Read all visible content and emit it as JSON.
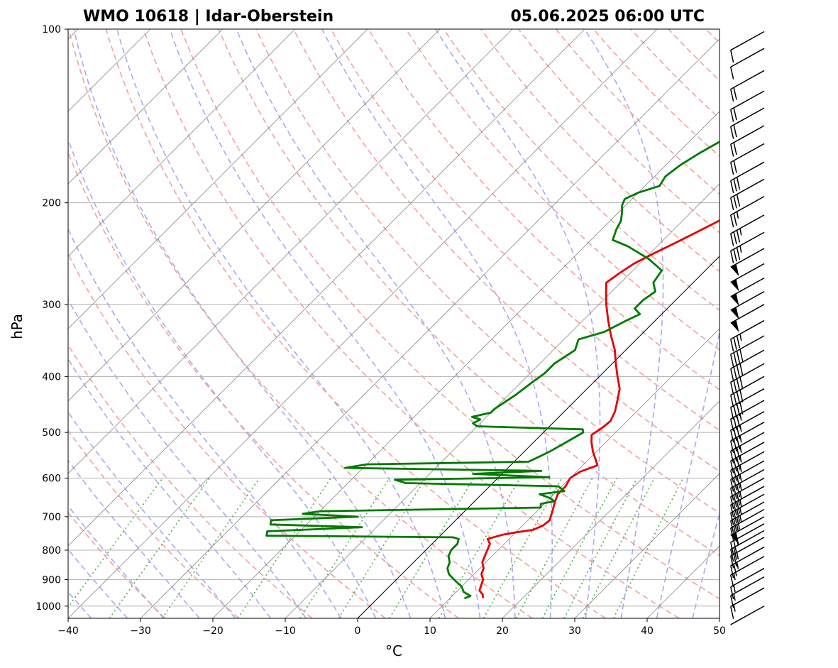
{
  "header": {
    "station": "WMO 10618 | Idar-Oberstein",
    "datetime": "05.06.2025 06:00 UTC"
  },
  "chart_data": {
    "type": "line",
    "diagram": "skew-T log-P",
    "title": "WMO 10618 | Idar-Oberstein",
    "subtitle": "05.06.2025 06:00 UTC",
    "xlabel": "°C",
    "ylabel": "hPa",
    "xlim": [
      -40,
      50
    ],
    "ylim_pressure": [
      1050,
      100
    ],
    "y_scale": "log",
    "x_ticks": [
      -40,
      -30,
      -20,
      -10,
      0,
      10,
      20,
      30,
      40,
      50
    ],
    "x_tick_labels": [
      "−40",
      "−30",
      "−20",
      "−10",
      "0",
      "10",
      "20",
      "30",
      "40",
      "50"
    ],
    "y_ticks": [
      100,
      200,
      300,
      400,
      500,
      600,
      700,
      800,
      900,
      1000
    ],
    "y_tick_labels": [
      "100",
      "200",
      "300",
      "400",
      "500",
      "600",
      "700",
      "800",
      "900",
      "1000"
    ],
    "grid": true,
    "colors": {
      "temperature": "#e60000",
      "dewpoint": "#007a00",
      "dry_adiabats": "#f4a0a0",
      "moist_adiabats": "#a8a8f4",
      "mixing_ratio": "#4caf4c",
      "isotherms": "#888888",
      "zero_isotherm": "#000000"
    },
    "series": [
      {
        "key": "temperature",
        "points": [
          [
            968,
            14.5
          ],
          [
            955,
            14.0
          ],
          [
            940,
            13.0
          ],
          [
            920,
            12.5
          ],
          [
            900,
            12.0
          ],
          [
            880,
            11.0
          ],
          [
            860,
            10.5
          ],
          [
            840,
            9.5
          ],
          [
            820,
            9.0
          ],
          [
            800,
            8.5
          ],
          [
            780,
            8.0
          ],
          [
            765,
            7.0
          ],
          [
            752,
            8.5
          ],
          [
            745,
            10.0
          ],
          [
            738,
            12.0
          ],
          [
            725,
            12.8
          ],
          [
            710,
            13.0
          ],
          [
            690,
            12.3
          ],
          [
            660,
            11.2
          ],
          [
            640,
            10.5
          ],
          [
            620,
            10.5
          ],
          [
            600,
            10.0
          ],
          [
            585,
            10.5
          ],
          [
            570,
            12.0
          ],
          [
            560,
            11.2
          ],
          [
            540,
            9.5
          ],
          [
            520,
            8.0
          ],
          [
            505,
            7.0
          ],
          [
            490,
            7.5
          ],
          [
            478,
            7.7
          ],
          [
            460,
            7.0
          ],
          [
            440,
            5.8
          ],
          [
            420,
            4.5
          ],
          [
            400,
            2.5
          ],
          [
            380,
            0.5
          ],
          [
            360,
            -1.5
          ],
          [
            340,
            -4.0
          ],
          [
            320,
            -6.5
          ],
          [
            300,
            -9.0
          ],
          [
            285,
            -10.8
          ],
          [
            275,
            -12.0
          ],
          [
            265,
            -11.5
          ],
          [
            255,
            -10.8
          ],
          [
            245,
            -9.5
          ],
          [
            235,
            -8.0
          ],
          [
            225,
            -6.5
          ],
          [
            215,
            -5.0
          ],
          [
            205,
            -4.0
          ],
          [
            197,
            -3.0
          ],
          [
            194,
            -5.0
          ],
          [
            188,
            -5.0
          ],
          [
            178,
            -4.5
          ],
          [
            170,
            -3.5
          ],
          [
            164,
            -3.0
          ],
          [
            158,
            -1.0
          ],
          [
            150,
            -0.5
          ],
          [
            145,
            -0.2
          ],
          [
            141,
            -1.2
          ],
          [
            136,
            -0.5
          ],
          [
            130,
            1.0
          ],
          [
            125,
            3.0
          ],
          [
            121,
            5.5
          ],
          [
            117,
            7.0
          ],
          [
            112,
            7.5
          ],
          [
            106,
            8.5
          ],
          [
            101,
            8.8
          ]
        ]
      },
      {
        "key": "dewpoint",
        "points": [
          [
            970,
            12.0
          ],
          [
            960,
            12.5
          ],
          [
            945,
            11.0
          ],
          [
            925,
            10.0
          ],
          [
            900,
            8.0
          ],
          [
            880,
            6.5
          ],
          [
            860,
            5.5
          ],
          [
            840,
            5.0
          ],
          [
            820,
            4.0
          ],
          [
            800,
            3.5
          ],
          [
            780,
            3.5
          ],
          [
            765,
            3.0
          ],
          [
            760,
            2.0
          ],
          [
            755,
            -24.0
          ],
          [
            742,
            -24.5
          ],
          [
            730,
            -12.0
          ],
          [
            722,
            -25.0
          ],
          [
            710,
            -25.5
          ],
          [
            700,
            -14.0
          ],
          [
            692,
            -22.0
          ],
          [
            685,
            -20.0
          ],
          [
            675,
            10.0
          ],
          [
            665,
            9.5
          ],
          [
            658,
            11.0
          ],
          [
            650,
            10.0
          ],
          [
            640,
            8.0
          ],
          [
            632,
            11.0
          ],
          [
            620,
            9.5
          ],
          [
            612,
            -12.0
          ],
          [
            604,
            -14.0
          ],
          [
            598,
            7.0
          ],
          [
            590,
            -4.0
          ],
          [
            583,
            5.0
          ],
          [
            576,
            -22.5
          ],
          [
            568,
            -20.0
          ],
          [
            562,
            2.0
          ],
          [
            540,
            3.5
          ],
          [
            520,
            4.5
          ],
          [
            500,
            5.5
          ],
          [
            494,
            5.0
          ],
          [
            488,
            -10.0
          ],
          [
            482,
            -11.0
          ],
          [
            475,
            -10.5
          ],
          [
            470,
            -12.0
          ],
          [
            462,
            -10.0
          ],
          [
            455,
            -10.0
          ],
          [
            430,
            -9.0
          ],
          [
            410,
            -8.5
          ],
          [
            395,
            -8.0
          ],
          [
            380,
            -8.0
          ],
          [
            360,
            -7.0
          ],
          [
            345,
            -8.0
          ],
          [
            335,
            -5.5
          ],
          [
            320,
            -4.0
          ],
          [
            312,
            -3.0
          ],
          [
            305,
            -4.5
          ],
          [
            295,
            -4.5
          ],
          [
            285,
            -4.0
          ],
          [
            275,
            -5.5
          ],
          [
            262,
            -6.0
          ],
          [
            250,
            -9.5
          ],
          [
            238,
            -14.0
          ],
          [
            232,
            -17.0
          ],
          [
            222,
            -18.0
          ],
          [
            215,
            -18.5
          ],
          [
            208,
            -19.5
          ],
          [
            202,
            -20.5
          ],
          [
            197,
            -21.0
          ],
          [
            192,
            -20.0
          ],
          [
            187,
            -18.0
          ],
          [
            180,
            -18.5
          ],
          [
            172,
            -18.0
          ],
          [
            164,
            -17.0
          ],
          [
            155,
            -15.5
          ],
          [
            145,
            -13.5
          ],
          [
            135,
            -12.0
          ],
          [
            125,
            -10.0
          ],
          [
            115,
            -8.5
          ],
          [
            108,
            -7.5
          ],
          [
            103,
            -7.2
          ],
          [
            100,
            -7.0
          ]
        ]
      }
    ],
    "wind_barbs": [
      {
        "p": 1000,
        "barbs": 0
      },
      {
        "p": 930,
        "barbs": 1.5
      },
      {
        "p": 890,
        "barbs": 1.5
      },
      {
        "p": 860,
        "barbs": 1.5
      },
      {
        "p": 820,
        "barbs": 1.5
      },
      {
        "p": 790,
        "barbs": 2.5
      },
      {
        "p": 760,
        "barbs": 2.5
      },
      {
        "p": 740,
        "barbs": 2
      },
      {
        "p": 720,
        "barbs": 2.5
      },
      {
        "p": 700,
        "pennants": 1,
        "barbs": 0
      },
      {
        "p": 680,
        "barbs": 2.5
      },
      {
        "p": 660,
        "barbs": 3.5
      },
      {
        "p": 640,
        "barbs": 3.5
      },
      {
        "p": 620,
        "barbs": 3.5
      },
      {
        "p": 600,
        "barbs": 3.5
      },
      {
        "p": 580,
        "barbs": 3.5
      },
      {
        "p": 560,
        "barbs": 3.5
      },
      {
        "p": 540,
        "barbs": 3.5
      },
      {
        "p": 520,
        "barbs": 3.5
      },
      {
        "p": 500,
        "barbs": 3.5
      },
      {
        "p": 480,
        "barbs": 3.5
      },
      {
        "p": 460,
        "barbs": 3.5
      },
      {
        "p": 440,
        "barbs": 3.5
      },
      {
        "p": 420,
        "barbs": 4
      },
      {
        "p": 400,
        "barbs": 4
      },
      {
        "p": 380,
        "barbs": 4
      },
      {
        "p": 360,
        "barbs": 4
      },
      {
        "p": 340,
        "barbs": 4
      },
      {
        "p": 320,
        "barbs": 3.5
      },
      {
        "p": 300,
        "pennants": 1,
        "barbs": 0
      },
      {
        "p": 285,
        "pennants": 1,
        "barbs": 0
      },
      {
        "p": 270,
        "pennants": 1,
        "barbs": 0
      },
      {
        "p": 255,
        "pennants": 1,
        "barbs": 0
      },
      {
        "p": 240,
        "pennants": 1,
        "barbs": 0
      },
      {
        "p": 225,
        "barbs": 3.5
      },
      {
        "p": 210,
        "barbs": 3.5
      },
      {
        "p": 195,
        "barbs": 2.5
      },
      {
        "p": 182,
        "barbs": 3
      },
      {
        "p": 170,
        "barbs": 3
      },
      {
        "p": 158,
        "barbs": 2
      },
      {
        "p": 147,
        "barbs": 2
      },
      {
        "p": 137,
        "barbs": 2
      },
      {
        "p": 128,
        "barbs": 2
      },
      {
        "p": 118,
        "barbs": 2
      },
      {
        "p": 108,
        "barbs": 1
      },
      {
        "p": 101,
        "barbs": 1
      }
    ]
  }
}
